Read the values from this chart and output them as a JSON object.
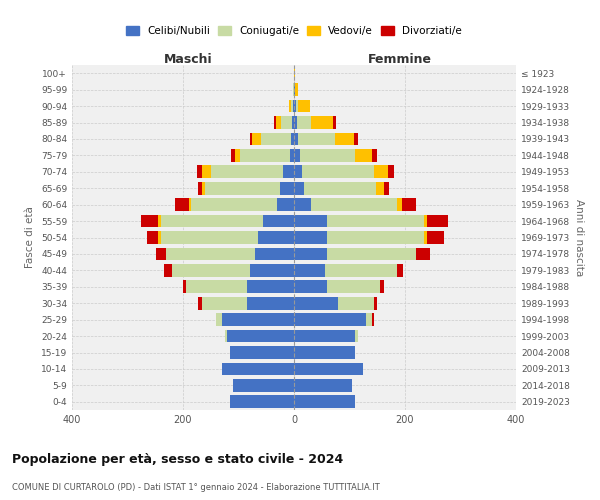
{
  "age_groups": [
    "0-4",
    "5-9",
    "10-14",
    "15-19",
    "20-24",
    "25-29",
    "30-34",
    "35-39",
    "40-44",
    "45-49",
    "50-54",
    "55-59",
    "60-64",
    "65-69",
    "70-74",
    "75-79",
    "80-84",
    "85-89",
    "90-94",
    "95-99",
    "100+"
  ],
  "birth_years": [
    "2019-2023",
    "2014-2018",
    "2009-2013",
    "2004-2008",
    "1999-2003",
    "1994-1998",
    "1989-1993",
    "1984-1988",
    "1979-1983",
    "1974-1978",
    "1969-1973",
    "1964-1968",
    "1959-1963",
    "1954-1958",
    "1949-1953",
    "1944-1948",
    "1939-1943",
    "1934-1938",
    "1929-1933",
    "1924-1928",
    "≤ 1923"
  ],
  "colors": {
    "celibi": "#4472c4",
    "coniugati": "#c8dba4",
    "vedovi": "#ffc000",
    "divorziati": "#cc0000"
  },
  "maschi": {
    "celibi": [
      115,
      110,
      130,
      115,
      120,
      130,
      85,
      85,
      80,
      70,
      65,
      55,
      30,
      25,
      20,
      8,
      5,
      3,
      1,
      0,
      0
    ],
    "coniugati": [
      0,
      0,
      0,
      0,
      5,
      10,
      80,
      110,
      140,
      160,
      175,
      185,
      155,
      135,
      130,
      90,
      55,
      20,
      5,
      1,
      0
    ],
    "vedovi": [
      0,
      0,
      0,
      0,
      0,
      0,
      0,
      0,
      0,
      0,
      5,
      5,
      5,
      5,
      15,
      8,
      15,
      10,
      3,
      0,
      0
    ],
    "divorziati": [
      0,
      0,
      0,
      0,
      0,
      0,
      8,
      5,
      15,
      18,
      20,
      30,
      25,
      8,
      10,
      8,
      5,
      3,
      0,
      0,
      0
    ]
  },
  "femmine": {
    "celibi": [
      110,
      105,
      125,
      110,
      110,
      130,
      80,
      60,
      55,
      60,
      60,
      60,
      30,
      18,
      15,
      10,
      8,
      5,
      3,
      2,
      0
    ],
    "coniugati": [
      0,
      0,
      0,
      0,
      5,
      10,
      65,
      95,
      130,
      160,
      175,
      175,
      155,
      130,
      130,
      100,
      65,
      25,
      5,
      0,
      0
    ],
    "vedovi": [
      0,
      0,
      0,
      0,
      0,
      0,
      0,
      0,
      0,
      0,
      5,
      5,
      10,
      15,
      25,
      30,
      35,
      40,
      20,
      5,
      2
    ],
    "divorziati": [
      0,
      0,
      0,
      0,
      0,
      5,
      5,
      8,
      12,
      25,
      30,
      38,
      25,
      8,
      10,
      10,
      8,
      5,
      0,
      0,
      0
    ]
  },
  "title": "Popolazione per età, sesso e stato civile - 2024",
  "subtitle": "COMUNE DI CURTAROLO (PD) - Dati ISTAT 1° gennaio 2024 - Elaborazione TUTTITALIA.IT",
  "xlabel_left": "Maschi",
  "xlabel_right": "Femmine",
  "ylabel_left": "Fasce di età",
  "ylabel_right": "Anni di nascita",
  "legend_labels": [
    "Celibi/Nubili",
    "Coniugati/e",
    "Vedovi/e",
    "Divorziati/e"
  ],
  "xlim": 400,
  "background_color": "#ffffff",
  "plot_bg_color": "#f0f0f0",
  "grid_color": "#cccccc"
}
